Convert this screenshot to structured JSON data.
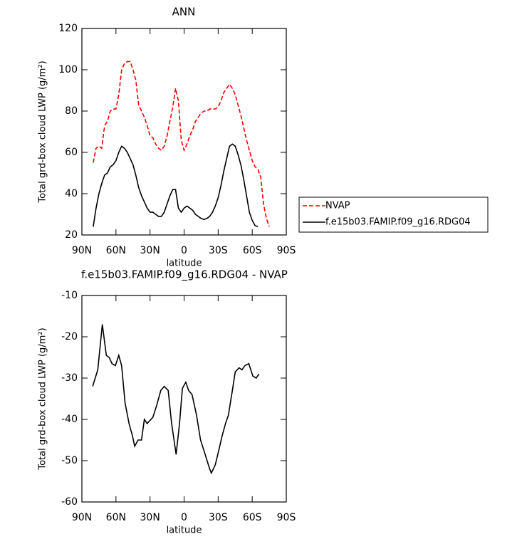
{
  "chart_data": [
    {
      "type": "line",
      "title": "ANN",
      "x_label": "latitude",
      "y_label": "Total grd-box cloud LWP (g/m²)",
      "xlim": [
        90,
        -90
      ],
      "xticks": [
        {
          "value": 90,
          "label": "90N"
        },
        {
          "value": 60,
          "label": "60N"
        },
        {
          "value": 30,
          "label": "30N"
        },
        0,
        {
          "value": -30,
          "label": "30S"
        },
        {
          "value": -60,
          "label": "60S"
        },
        {
          "value": -90,
          "label": "90S"
        }
      ],
      "ylim": [
        20,
        120
      ],
      "yticks": [
        20,
        40,
        60,
        80,
        100,
        120
      ],
      "legend": "outside-right",
      "series": [
        {
          "name": "NVAP",
          "color": "#ff0000",
          "line_style": "dashed",
          "x": [
            80,
            77.5,
            75,
            72.5,
            70,
            67.5,
            65,
            62.5,
            60,
            57.5,
            55,
            52.5,
            50,
            47.5,
            45,
            42.5,
            40,
            37.5,
            35,
            32.5,
            30,
            27.5,
            25,
            22.5,
            20,
            17.5,
            15,
            12.5,
            10,
            7.5,
            5,
            2.5,
            0,
            -2.5,
            -5,
            -7.5,
            -10,
            -12.5,
            -15,
            -17.5,
            -20,
            -22.5,
            -25,
            -27.5,
            -30,
            -32.5,
            -35,
            -37.5,
            -40,
            -42.5,
            -45,
            -47.5,
            -50,
            -52.5,
            -55,
            -57.5,
            -60,
            -62.5,
            -65,
            -67.5,
            -70,
            -72.5,
            -75
          ],
          "values": [
            55,
            62,
            63,
            62,
            73,
            75,
            80,
            81,
            81,
            88,
            100,
            103,
            104,
            104,
            100,
            95,
            83,
            80,
            77,
            73,
            68,
            67,
            64,
            62,
            61,
            63,
            68,
            75,
            82,
            91,
            85,
            66,
            61,
            64,
            68,
            71,
            75,
            77,
            79,
            80,
            80,
            81,
            81,
            81,
            82,
            85,
            89,
            91,
            93,
            91,
            88,
            83,
            78,
            72,
            66,
            61,
            56,
            53,
            52,
            48,
            35,
            28,
            24
          ]
        },
        {
          "name": "f.e15b03.FAMIP.f09_g16.RDG04",
          "color": "#000000",
          "line_style": "solid",
          "x": [
            80,
            77.5,
            75,
            72.5,
            70,
            67.5,
            65,
            62.5,
            60,
            57.5,
            55,
            52.5,
            50,
            47.5,
            45,
            42.5,
            40,
            37.5,
            35,
            32.5,
            30,
            27.5,
            25,
            22.5,
            20,
            17.5,
            15,
            12.5,
            10,
            7.5,
            5,
            2.5,
            0,
            -2.5,
            -5,
            -7.5,
            -10,
            -12.5,
            -15,
            -17.5,
            -20,
            -22.5,
            -25,
            -27.5,
            -30,
            -32.5,
            -35,
            -37.5,
            -40,
            -42.5,
            -45,
            -47.5,
            -50,
            -52.5,
            -55,
            -57.5,
            -60,
            -62.5,
            -65
          ],
          "values": [
            24,
            33,
            40,
            45,
            49,
            50,
            53,
            54,
            56,
            60,
            63,
            62,
            60,
            57,
            54,
            49,
            43,
            39,
            36,
            33,
            31,
            31,
            30,
            29,
            29,
            31,
            35,
            39,
            42,
            42,
            33,
            31,
            33,
            34,
            33,
            32,
            30,
            29,
            28,
            27.5,
            28,
            29,
            31,
            34,
            38,
            44,
            51,
            57,
            63,
            64,
            63,
            59,
            54,
            47,
            39,
            31,
            27,
            24.5,
            24
          ]
        }
      ]
    },
    {
      "type": "line",
      "title": "f.e15b03.FAMIP.f09_g16.RDG04 - NVAP",
      "x_label": "latitude",
      "y_label": "Total grd-box cloud LWP (g/m²)",
      "xlim": [
        90,
        -90
      ],
      "xticks": [
        {
          "value": 90,
          "label": "90N"
        },
        {
          "value": 60,
          "label": "60N"
        },
        {
          "value": 30,
          "label": "30N"
        },
        0,
        {
          "value": -30,
          "label": "30S"
        },
        {
          "value": -60,
          "label": "60S"
        },
        {
          "value": -90,
          "label": "90S"
        }
      ],
      "ylim": [
        -60,
        -10
      ],
      "yticks": [
        -60,
        -50,
        -40,
        -30,
        -20,
        -10
      ],
      "series": [
        {
          "color": "#000000",
          "line_style": "solid",
          "x": [
            80.5,
            76,
            72,
            68.5,
            66,
            63.5,
            60.5,
            57.5,
            55,
            52,
            48.5,
            45.5,
            43.5,
            40.5,
            37.5,
            35,
            32.5,
            27.5,
            24,
            20.5,
            17.5,
            14,
            11,
            7,
            4,
            1.5,
            -1.5,
            -4,
            -7,
            -11,
            -14.5,
            -18,
            -22.5,
            -24,
            -27.5,
            -31,
            -33.5,
            -36.5,
            -39,
            -42.5,
            -45,
            -48.5,
            -51,
            -53.5,
            -57,
            -60.5,
            -63.5,
            -66
          ],
          "values": [
            -32,
            -28,
            -17,
            -24.5,
            -25,
            -26.5,
            -27,
            -24.5,
            -27,
            -36,
            -41,
            -44,
            -46.5,
            -45,
            -45,
            -40,
            -41,
            -39.5,
            -36.5,
            -33,
            -32,
            -33,
            -41,
            -48.5,
            -41,
            -32.5,
            -31,
            -33,
            -34,
            -39,
            -45,
            -48,
            -52,
            -53,
            -51,
            -47,
            -44,
            -41,
            -39,
            -33,
            -28.5,
            -27.5,
            -28,
            -27,
            -26.5,
            -29.5,
            -30,
            -29
          ]
        }
      ]
    }
  ]
}
